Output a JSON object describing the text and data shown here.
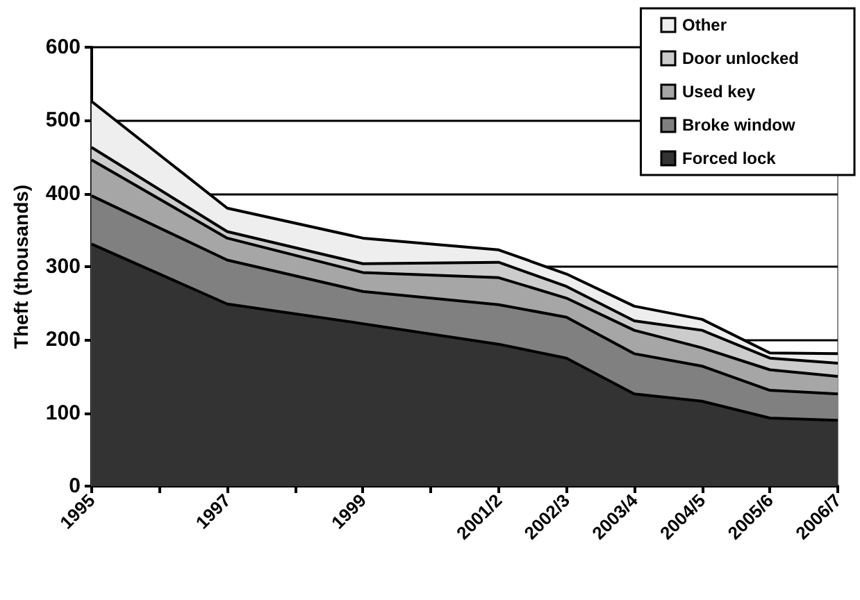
{
  "chart_data": {
    "type": "area",
    "stacked": true,
    "ylabel": "Theft (thousands)",
    "categories": [
      "1995",
      null,
      "1997",
      null,
      "1999",
      null,
      "2001/2",
      "2002/3",
      "2003/4",
      "2004/5",
      "2005/6",
      "2006/7"
    ],
    "series": [
      {
        "name": "Forced lock",
        "color": "#333333",
        "values": [
          331,
          null,
          249,
          null,
          222,
          null,
          194,
          175,
          126,
          116,
          93,
          90
        ]
      },
      {
        "name": "Broke window",
        "color": "#808080",
        "values": [
          66,
          null,
          60,
          null,
          44,
          null,
          54,
          56,
          55,
          48,
          38,
          36
        ]
      },
      {
        "name": "Used key",
        "color": "#a6a6a6",
        "values": [
          49,
          null,
          30,
          null,
          26,
          null,
          37,
          26,
          32,
          25,
          28,
          24
        ]
      },
      {
        "name": "Door unlocked",
        "color": "#cccccc",
        "values": [
          17,
          null,
          9,
          null,
          12,
          null,
          21,
          16,
          13,
          24,
          16,
          18
        ]
      },
      {
        "name": "Other",
        "color": "#eeeeee",
        "values": [
          63,
          null,
          32,
          null,
          35,
          null,
          17,
          17,
          20,
          15,
          7,
          13
        ]
      }
    ],
    "ylim": [
      0,
      600
    ],
    "yticks": [
      0,
      100,
      200,
      300,
      400,
      500,
      600
    ],
    "grid": "y",
    "legend": "top right"
  }
}
